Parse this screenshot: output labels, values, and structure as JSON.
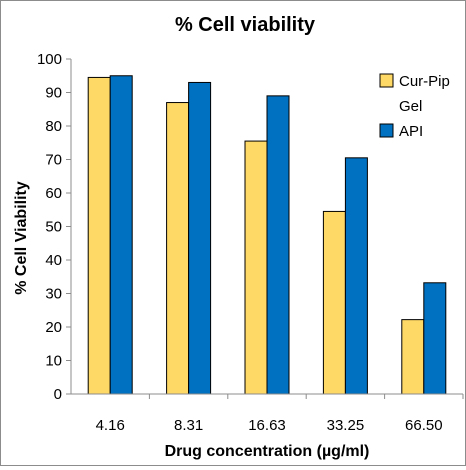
{
  "chart_data": {
    "type": "bar",
    "title": "% Cell viability",
    "xlabel": "Drug concentration (µg/ml)",
    "ylabel": "% Cell Viability",
    "categories": [
      "4.16",
      "8.31",
      "16.63",
      "33.25",
      "66.50"
    ],
    "series": [
      {
        "name": "Cur-Pip Gel",
        "legend_lines": [
          "Cur-Pip",
          "Gel"
        ],
        "color": "#FFD966",
        "values": [
          94.5,
          87,
          75.5,
          54.5,
          22.2
        ]
      },
      {
        "name": "API",
        "legend_lines": [
          "API"
        ],
        "color": "#0070C0",
        "values": [
          95,
          93,
          89,
          70.5,
          33.2
        ]
      }
    ],
    "ylim": [
      0,
      100
    ],
    "yticks": [
      0,
      10,
      20,
      30,
      40,
      50,
      60,
      70,
      80,
      90,
      100
    ],
    "grid": false,
    "legend_position": "top-right"
  }
}
